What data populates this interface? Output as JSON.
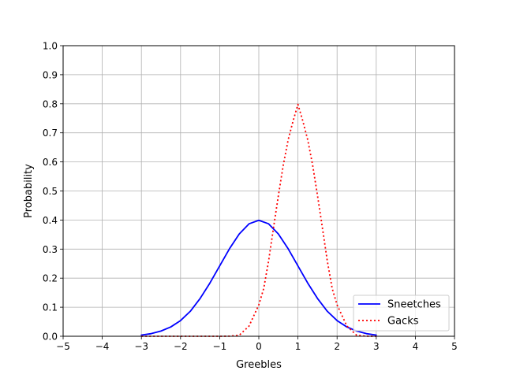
{
  "chart_data": {
    "type": "line",
    "title": "",
    "xlabel": "Greebles",
    "ylabel": "Probability",
    "xlim": [
      -5,
      5
    ],
    "ylim": [
      0,
      1
    ],
    "x_ticks": [
      -5,
      -4,
      -3,
      -2,
      -1,
      0,
      1,
      2,
      3,
      4,
      5
    ],
    "x_tick_labels": [
      "−5",
      "−4",
      "−3",
      "−2",
      "−1",
      "0",
      "1",
      "2",
      "3",
      "4",
      "5"
    ],
    "y_ticks": [
      0,
      0.1,
      0.2,
      0.3,
      0.4,
      0.5,
      0.6,
      0.7,
      0.8,
      0.9,
      1.0
    ],
    "y_tick_labels": [
      "0.0",
      "0.1",
      "0.2",
      "0.3",
      "0.4",
      "0.5",
      "0.6",
      "0.7",
      "0.8",
      "0.9",
      "1.0"
    ],
    "grid": true,
    "legend_position": "lower-right",
    "series": [
      {
        "name": "Sneetches",
        "color": "#0000ff",
        "style": "solid",
        "x": [
          -3,
          -2.75,
          -2.5,
          -2.25,
          -2,
          -1.75,
          -1.5,
          -1.25,
          -1,
          -0.75,
          -0.5,
          -0.25,
          0,
          0.25,
          0.5,
          0.75,
          1,
          1.25,
          1.5,
          1.75,
          2,
          2.25,
          2.5,
          2.75,
          3
        ],
        "y": [
          0.004,
          0.009,
          0.018,
          0.032,
          0.054,
          0.086,
          0.13,
          0.183,
          0.242,
          0.301,
          0.352,
          0.387,
          0.399,
          0.387,
          0.352,
          0.301,
          0.242,
          0.183,
          0.13,
          0.086,
          0.054,
          0.032,
          0.018,
          0.009,
          0.004
        ]
      },
      {
        "name": "Gacks",
        "color": "#ff0000",
        "style": "dotted",
        "x": [
          -3,
          -2.5,
          -2,
          -1.5,
          -1,
          -0.75,
          -0.5,
          -0.25,
          0,
          0.125,
          0.25,
          0.375,
          0.5,
          0.625,
          0.75,
          0.875,
          1,
          1.125,
          1.25,
          1.375,
          1.5,
          1.625,
          1.75,
          1.875,
          2,
          2.25,
          2.5,
          2.75,
          3
        ],
        "y": [
          0,
          0,
          0,
          0,
          0,
          0.0003,
          0.0035,
          0.0351,
          0.108,
          0.1644,
          0.259,
          0.3731,
          0.4839,
          0.5892,
          0.676,
          0.7406,
          0.7979,
          0.7406,
          0.676,
          0.5892,
          0.4839,
          0.3731,
          0.259,
          0.1644,
          0.108,
          0.0351,
          0.0035,
          0.0003,
          0
        ]
      }
    ]
  }
}
